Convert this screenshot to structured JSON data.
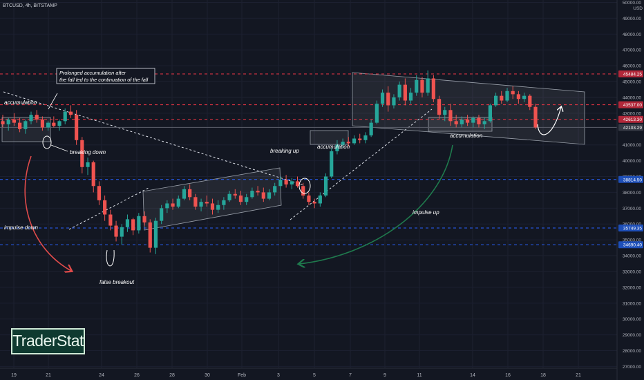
{
  "header": {
    "symbol": "BTCUSD, 4h, BITSTAMP"
  },
  "logo": {
    "text": "TraderStat"
  },
  "colors": {
    "background": "#131722",
    "bull": "#26a69a",
    "bear": "#ef5350",
    "resistance_line": "#f23645",
    "support_line": "#2962ff",
    "annotation": "#ffffff",
    "arrow_down": "#e04b4b",
    "arrow_up": "#1f7a4d"
  },
  "price_axis": {
    "currency": "USD",
    "ticks": [
      "50000.00",
      "49000.00",
      "48000.00",
      "47000.00",
      "46000.00",
      "45000.00",
      "44000.00",
      "43000.00",
      "41000.00",
      "40000.00",
      "39000.00",
      "38000.00",
      "37000.00",
      "36000.00",
      "35000.00",
      "34000.00",
      "33000.00",
      "32000.00",
      "31000.00",
      "30000.00",
      "29000.00",
      "28000.00",
      "27000.00"
    ],
    "price_labels": [
      {
        "text": "45484.25",
        "type": "resistance"
      },
      {
        "text": "43537.00",
        "type": "resistance"
      },
      {
        "text": "42613.30",
        "type": "resistance"
      },
      {
        "text": "42103.29",
        "type": "current"
      },
      {
        "text": "38814.50",
        "type": "support"
      },
      {
        "text": "35749.35",
        "type": "support"
      },
      {
        "text": "34690.40",
        "type": "support"
      }
    ]
  },
  "time_axis": {
    "labels": [
      "19",
      "21",
      "24",
      "26",
      "28",
      "30",
      "Feb",
      "3",
      "5",
      "7",
      "9",
      "11",
      "14",
      "16",
      "18",
      "21"
    ]
  },
  "annotations": [
    {
      "key": "accumulation_left",
      "text": "accumulation"
    },
    {
      "key": "callout_line1",
      "text": "Prolonged accumulation after"
    },
    {
      "key": "callout_line2",
      "text": "the fall led to the continuation of the fall"
    },
    {
      "key": "breaking_down",
      "text": "breaking down"
    },
    {
      "key": "impulse_down",
      "text": "impulse down"
    },
    {
      "key": "false_breakout",
      "text": "false breakout"
    },
    {
      "key": "breaking_up",
      "text": "breaking up"
    },
    {
      "key": "accumulation_mid",
      "text": "accumulation"
    },
    {
      "key": "accumulation_right",
      "text": "accumulation"
    },
    {
      "key": "impulse_up",
      "text": "impulse up"
    }
  ],
  "candles": [
    [
      42500,
      42900,
      42100,
      42300
    ],
    [
      42300,
      42700,
      41900,
      42600
    ],
    [
      42600,
      43000,
      42200,
      42400
    ],
    [
      42400,
      42700,
      41800,
      42000
    ],
    [
      42000,
      42600,
      41700,
      42500
    ],
    [
      42500,
      43100,
      42300,
      42900
    ],
    [
      42900,
      43200,
      42400,
      42600
    ],
    [
      42600,
      42800,
      41900,
      42100
    ],
    [
      42100,
      42500,
      41900,
      42400
    ],
    [
      42400,
      42800,
      42100,
      42200
    ],
    [
      42200,
      42600,
      41900,
      42500
    ],
    [
      42500,
      43300,
      42300,
      43100
    ],
    [
      43100,
      43500,
      42700,
      42900
    ],
    [
      42900,
      43200,
      41000,
      41300
    ],
    [
      41300,
      41500,
      39200,
      39600
    ],
    [
      39600,
      40200,
      39100,
      39900
    ],
    [
      39900,
      40000,
      38000,
      38400
    ],
    [
      38400,
      38700,
      37200,
      37500
    ],
    [
      37500,
      37800,
      36200,
      36600
    ],
    [
      36600,
      36900,
      35600,
      35900
    ],
    [
      35900,
      36200,
      34900,
      35200
    ],
    [
      35200,
      36000,
      34700,
      35800
    ],
    [
      35800,
      36600,
      35500,
      36300
    ],
    [
      36300,
      36400,
      35300,
      35600
    ],
    [
      35600,
      36700,
      35400,
      36500
    ],
    [
      36500,
      36800,
      35900,
      36100
    ],
    [
      36100,
      36300,
      34200,
      34500
    ],
    [
      34500,
      36400,
      34100,
      36200
    ],
    [
      36200,
      37200,
      36000,
      37000
    ],
    [
      37000,
      37500,
      36700,
      37300
    ],
    [
      37300,
      37600,
      36900,
      37100
    ],
    [
      37100,
      37800,
      37000,
      37600
    ],
    [
      37600,
      38400,
      37500,
      38200
    ],
    [
      38200,
      38500,
      37500,
      37700
    ],
    [
      37700,
      37900,
      36900,
      37100
    ],
    [
      37100,
      37600,
      36800,
      37400
    ],
    [
      37400,
      37800,
      37100,
      37300
    ],
    [
      37300,
      37600,
      36600,
      36900
    ],
    [
      36900,
      37500,
      36700,
      37200
    ],
    [
      37200,
      37700,
      36900,
      37500
    ],
    [
      37500,
      38100,
      37400,
      37900
    ],
    [
      37900,
      38200,
      37600,
      37800
    ],
    [
      37800,
      38100,
      37200,
      37400
    ],
    [
      37400,
      37900,
      37200,
      37700
    ],
    [
      37700,
      38300,
      37600,
      38100
    ],
    [
      38100,
      38400,
      37800,
      38000
    ],
    [
      38000,
      38300,
      37400,
      37600
    ],
    [
      37600,
      38200,
      37500,
      38000
    ],
    [
      38000,
      38600,
      37800,
      38400
    ],
    [
      38400,
      39000,
      38200,
      38800
    ],
    [
      38800,
      39100,
      38300,
      38500
    ],
    [
      38500,
      38900,
      38200,
      38700
    ],
    [
      38700,
      39000,
      38300,
      38400
    ],
    [
      38400,
      38600,
      37600,
      37800
    ],
    [
      37800,
      38000,
      37200,
      37400
    ],
    [
      37400,
      37600,
      37000,
      37300
    ],
    [
      37300,
      38000,
      37100,
      37800
    ],
    [
      37800,
      39200,
      37700,
      39000
    ],
    [
      39000,
      40800,
      38900,
      40600
    ],
    [
      40600,
      41300,
      40400,
      41000
    ],
    [
      41000,
      41400,
      40800,
      41200
    ],
    [
      41200,
      41500,
      40900,
      41100
    ],
    [
      41100,
      41600,
      41000,
      41400
    ],
    [
      41400,
      41700,
      41100,
      41300
    ],
    [
      41300,
      41800,
      41100,
      41600
    ],
    [
      41600,
      42600,
      41500,
      42400
    ],
    [
      42400,
      43800,
      42300,
      43600
    ],
    [
      43600,
      44500,
      43400,
      44300
    ],
    [
      44300,
      44700,
      43100,
      43500
    ],
    [
      43500,
      44200,
      43300,
      44000
    ],
    [
      44000,
      45000,
      43800,
      44800
    ],
    [
      44800,
      45200,
      43500,
      43800
    ],
    [
      43800,
      44600,
      43600,
      44300
    ],
    [
      44300,
      45400,
      44100,
      45100
    ],
    [
      45100,
      45300,
      44000,
      44300
    ],
    [
      44300,
      45700,
      44100,
      45200
    ],
    [
      45200,
      45400,
      43700,
      43900
    ],
    [
      43900,
      44100,
      42600,
      42900
    ],
    [
      42900,
      43400,
      42500,
      43200
    ],
    [
      43200,
      43600,
      42200,
      42500
    ],
    [
      42500,
      42900,
      42100,
      42300
    ],
    [
      42300,
      42800,
      42100,
      42600
    ],
    [
      42600,
      42900,
      42200,
      42400
    ],
    [
      42400,
      42800,
      42100,
      42700
    ],
    [
      42700,
      42900,
      42100,
      42300
    ],
    [
      42300,
      42700,
      42000,
      42500
    ],
    [
      42500,
      43600,
      42400,
      43500
    ],
    [
      43500,
      44300,
      43400,
      44100
    ],
    [
      44100,
      44400,
      43600,
      43800
    ],
    [
      43800,
      44600,
      43700,
      44400
    ],
    [
      44400,
      44700,
      43900,
      44200
    ],
    [
      44200,
      44400,
      43600,
      43900
    ],
    [
      43900,
      44300,
      43700,
      44100
    ],
    [
      44100,
      44200,
      43200,
      43400
    ],
    [
      43400,
      43600,
      42000,
      42100
    ]
  ]
}
